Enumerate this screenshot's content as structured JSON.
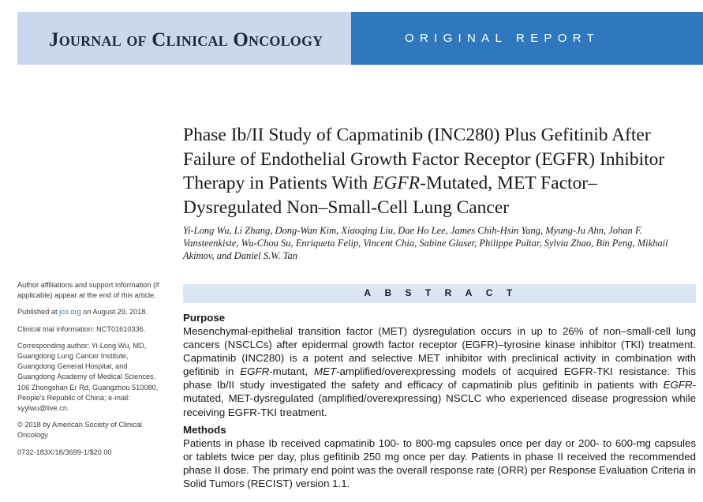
{
  "header": {
    "journal_name": "Journal of Clinical Oncology",
    "report_type": "ORIGINAL REPORT"
  },
  "article": {
    "title": "Phase Ib/II Study of Capmatinib (INC280) Plus Gefitinib After Failure of Endothelial Growth Factor Receptor (EGFR) Inhibitor Therapy in Patients With EGFR-Mutated, MET Factor–Dysregulated Non–Small-Cell Lung Cancer",
    "title_parts": {
      "before_italic": "Phase Ib/II Study of Capmatinib (INC280) Plus Gefitinib After Failure of Endothelial Growth Factor Receptor (EGFR) Inhibitor Therapy in Patients With ",
      "italic": "EGFR",
      "after_italic": "-Mutated, MET Factor–Dysregulated Non–Small-Cell Lung Cancer"
    },
    "authors": "Yi-Long Wu, Li Zhang, Dong-Wan Kim, Xiaoqing Liu, Dae Ho Lee, James Chih-Hsin Yang, Myung-Ju Ahn, Johan F. Vansteenkiste, Wu-Chou Su, Enriqueta Felip, Vincent Chia, Sabine Glaser, Philippe Pultar, Sylvia Zhao, Bin Peng, Mikhail Akimov, and Daniel S.W. Tan"
  },
  "sidebar": {
    "affiliations": "Author affiliations and support information (if applicable) appear at the end of this article.",
    "published_prefix": "Published at ",
    "published_link": "jco.org",
    "published_suffix": " on August 29, 2018.",
    "clinical_trial": "Clinical trial information: NCT01610336.",
    "corresponding": "Corresponding author: Yi-Long Wu, MD, Guangdong Lung Cancer Institute, Guangdong General Hospital, and Guangdong Academy of Medical Sciences, 106 Zhongshan Er Rd, Guangzhou 510080, People's Republic of China; e-mail: syylwu@live.cn.",
    "copyright": "© 2018 by American Society of Clinical Oncology",
    "doi": "0732-183X/18/3699-1/$20.00"
  },
  "abstract": {
    "label": "ABSTRACT",
    "purpose_heading": "Purpose",
    "purpose_text": {
      "p1": "Mesenchymal-epithelial transition factor (MET) dysregulation occurs in up to 26% of non–small-cell lung cancers (NSCLCs) after epidermal growth factor receptor (EGFR)–tyrosine kinase inhibitor (TKI) treatment. Capmatinib (INC280) is a potent and selective MET inhibitor with preclinical activity in combination with gefitinib in ",
      "i1": "EGFR",
      "p2": "-mutant, ",
      "i2": "MET",
      "p3": "-amplified/overexpressing models of acquired EGFR-TKI resistance. This phase Ib/II study investigated the safety and efficacy of capmatinib plus gefitinib in patients with ",
      "i3": "EGFR",
      "p4": "-mutated, MET-dysregulated (amplified/overexpressing) NSCLC who experienced disease progression while receiving EGFR-TKI treatment."
    },
    "methods_heading": "Methods",
    "methods_text": "Patients in phase Ib received capmatinib 100- to 800-mg capsules once per day or 200- to 600-mg capsules or tablets twice per day, plus gefitinib 250 mg once per day. Patients in phase II received the recommended phase II dose. The primary end point was the overall response rate (ORR) per Response Evaluation Criteria in Solid Tumors (RECIST) version 1.1."
  }
}
